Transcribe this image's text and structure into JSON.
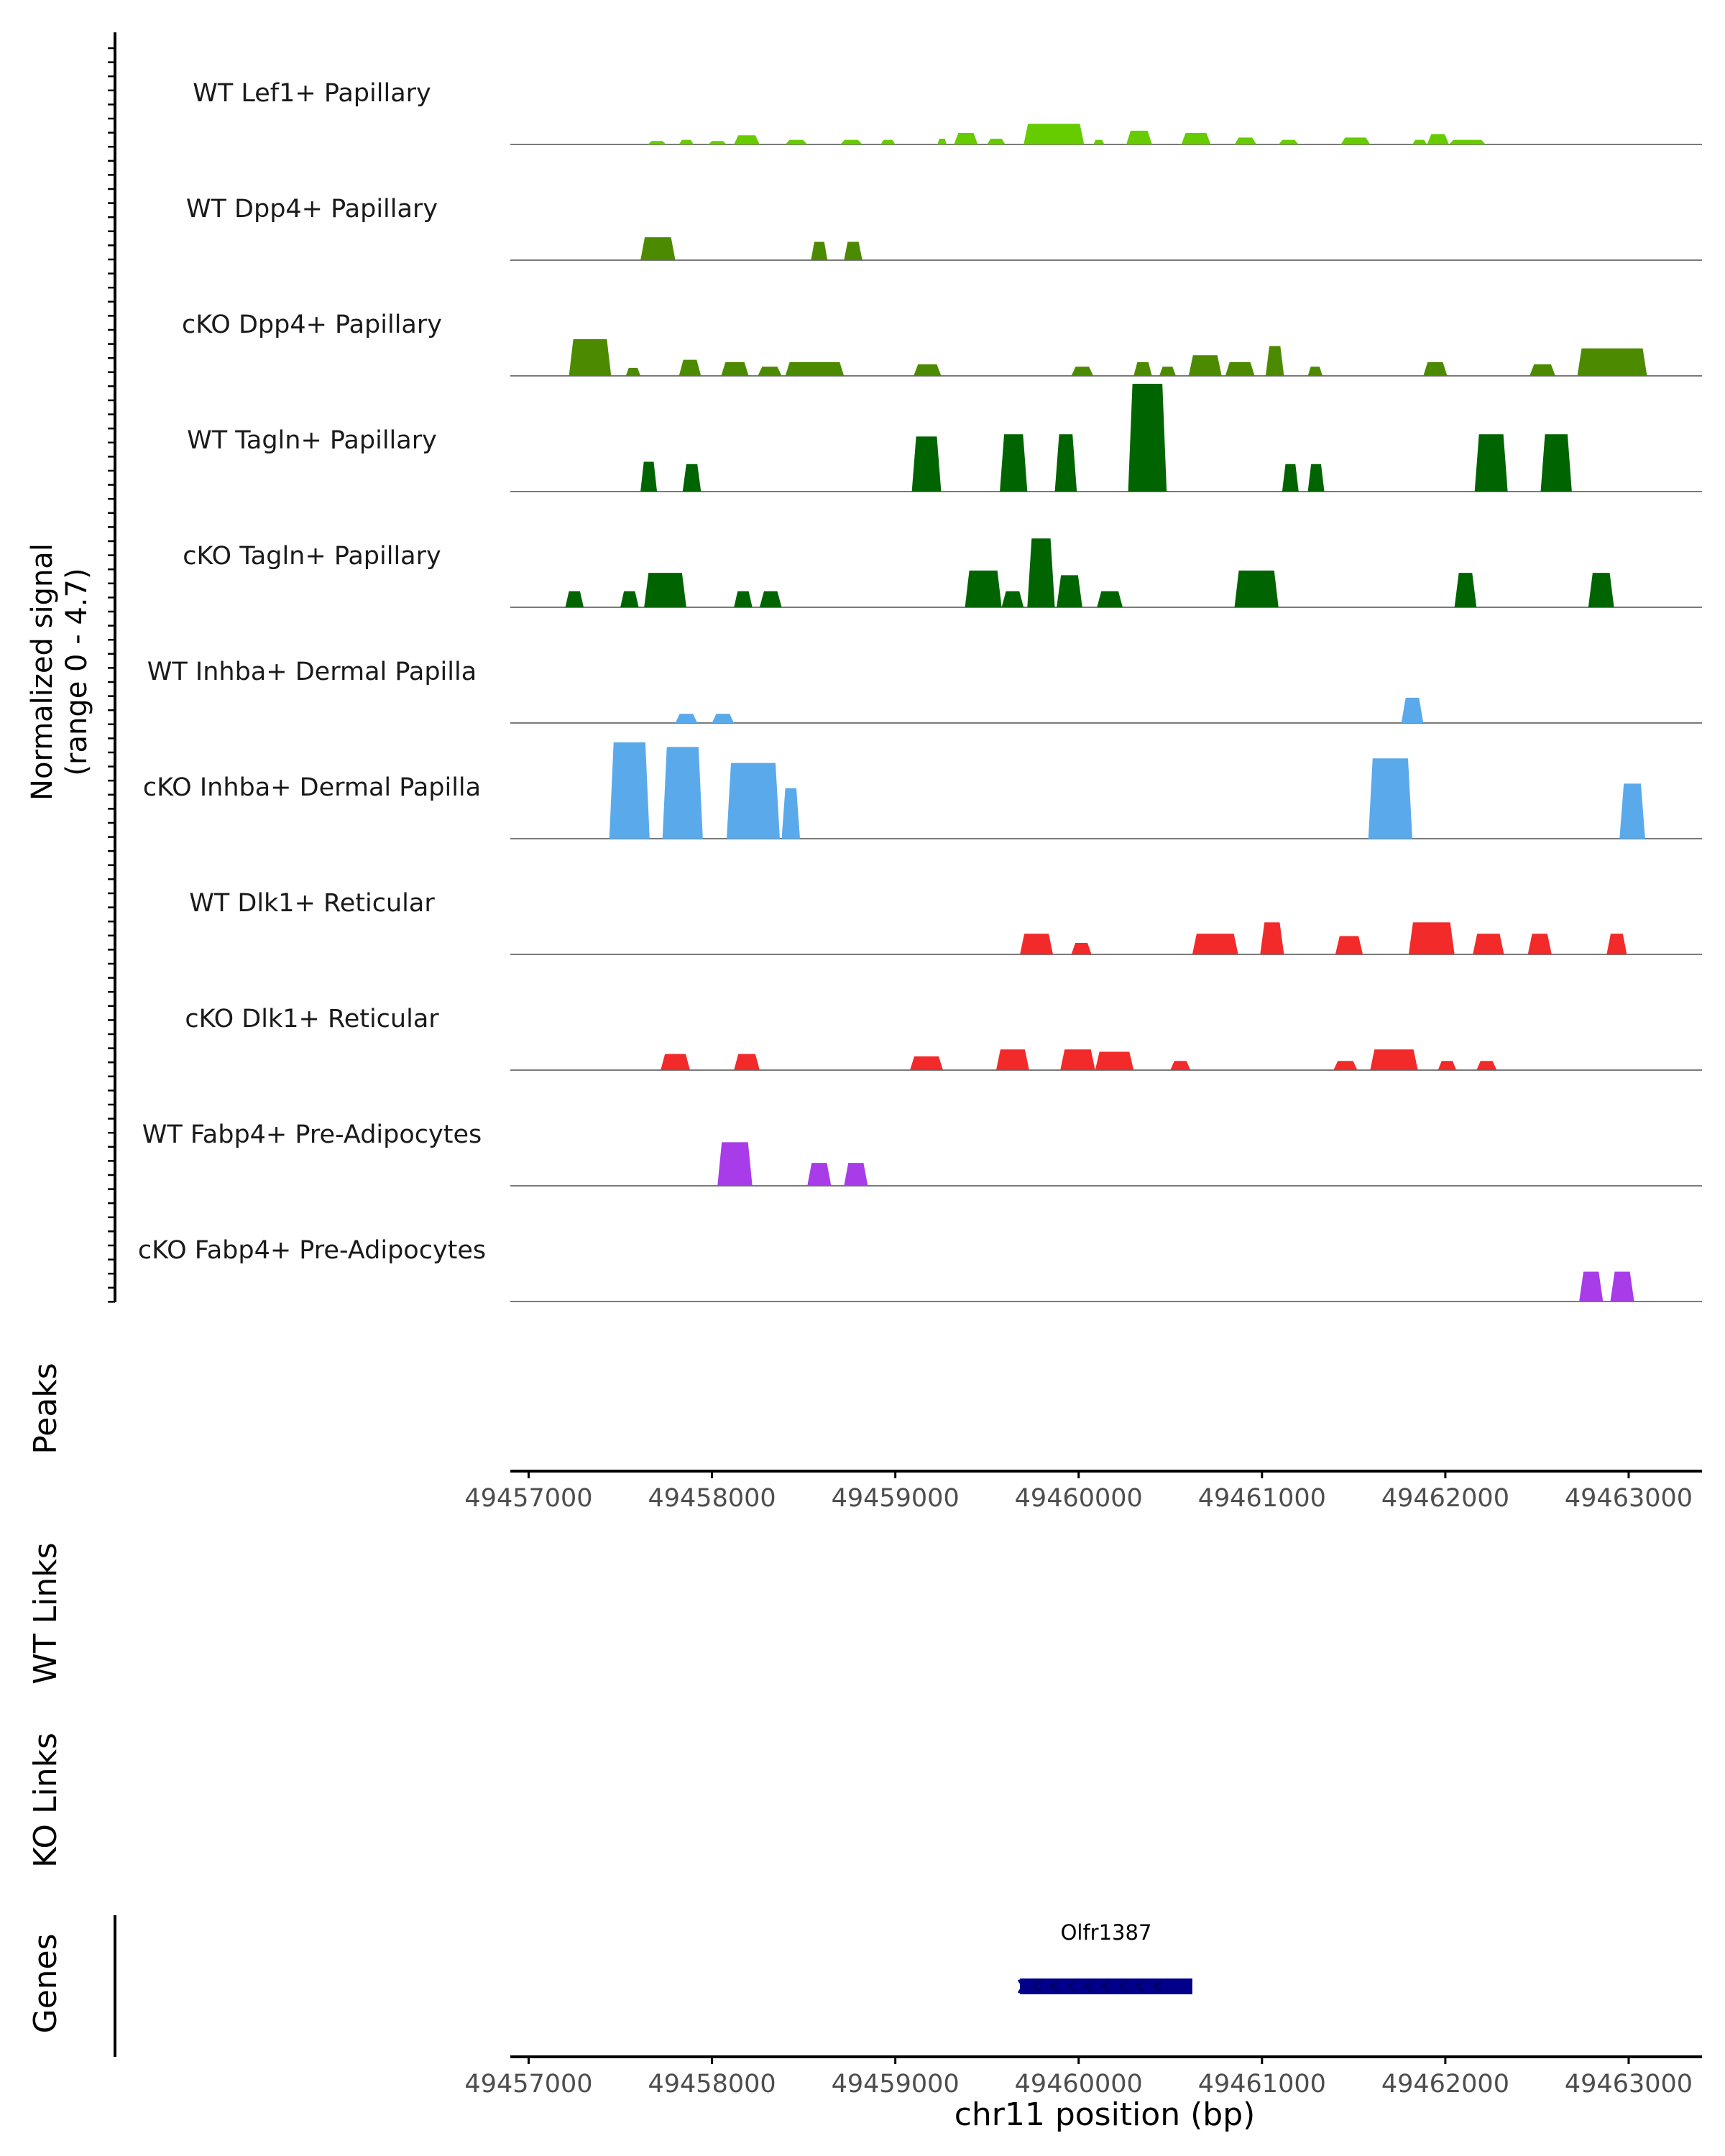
{
  "chart_data": {
    "type": "area",
    "title": "",
    "signal_axis_label": [
      "Normalized signal",
      "(range 0 - 4.7)"
    ],
    "signal_range": [
      0,
      4.7
    ],
    "xlabel": "chr11 position (bp)",
    "xlim": [
      49456900,
      49463400
    ],
    "x_ticks": [
      49457000,
      49458000,
      49459000,
      49460000,
      49461000,
      49462000,
      49463000
    ],
    "x_tick_labels": [
      "49457000",
      "49458000",
      "49459000",
      "49460000",
      "49461000",
      "49462000",
      "49463000"
    ],
    "series": [
      {
        "name": "WT Lef1+ Papillary",
        "color": "#66CC00",
        "peaks": [
          [
            49457650,
            49457750,
            0.15
          ],
          [
            49457820,
            49457900,
            0.2
          ],
          [
            49457980,
            49458080,
            0.15
          ],
          [
            49458120,
            49458260,
            0.4
          ],
          [
            49458400,
            49458520,
            0.2
          ],
          [
            49458700,
            49458820,
            0.2
          ],
          [
            49458920,
            49459000,
            0.2
          ],
          [
            49459230,
            49459280,
            0.25
          ],
          [
            49459320,
            49459450,
            0.5
          ],
          [
            49459500,
            49459600,
            0.25
          ],
          [
            49459700,
            49460030,
            0.9
          ],
          [
            49460080,
            49460140,
            0.2
          ],
          [
            49460260,
            49460400,
            0.6
          ],
          [
            49460560,
            49460720,
            0.5
          ],
          [
            49460850,
            49460970,
            0.3
          ],
          [
            49461090,
            49461200,
            0.2
          ],
          [
            49461430,
            49461590,
            0.3
          ],
          [
            49461820,
            49461900,
            0.2
          ],
          [
            49461900,
            49462020,
            0.45
          ],
          [
            49462020,
            49462220,
            0.2
          ]
        ]
      },
      {
        "name": "WT Dpp4+ Papillary",
        "color": "#4C8A00",
        "peaks": [
          [
            49457610,
            49457800,
            1.0
          ],
          [
            49458540,
            49458630,
            0.8
          ],
          [
            49458720,
            49458820,
            0.8
          ]
        ]
      },
      {
        "name": "cKO Dpp4+ Papillary",
        "color": "#4C8A00",
        "peaks": [
          [
            49457220,
            49457450,
            1.6
          ],
          [
            49457530,
            49457610,
            0.35
          ],
          [
            49457820,
            49457940,
            0.7
          ],
          [
            49458050,
            49458200,
            0.6
          ],
          [
            49458250,
            49458380,
            0.4
          ],
          [
            49458400,
            49458720,
            0.6
          ],
          [
            49459100,
            49459250,
            0.5
          ],
          [
            49459960,
            49460080,
            0.4
          ],
          [
            49460300,
            49460400,
            0.6
          ],
          [
            49460440,
            49460530,
            0.4
          ],
          [
            49460600,
            49460780,
            0.9
          ],
          [
            49460800,
            49460960,
            0.6
          ],
          [
            49461020,
            49461120,
            1.3
          ],
          [
            49461250,
            49461330,
            0.4
          ],
          [
            49461880,
            49462010,
            0.6
          ],
          [
            49462460,
            49462600,
            0.5
          ],
          [
            49462720,
            49463100,
            1.2
          ]
        ]
      },
      {
        "name": "WT Tagln+ Papillary",
        "color": "#006400",
        "peaks": [
          [
            49457610,
            49457700,
            1.3
          ],
          [
            49457840,
            49457940,
            1.2
          ],
          [
            49459090,
            49459250,
            2.4
          ],
          [
            49459570,
            49459720,
            2.5
          ],
          [
            49459870,
            49459990,
            2.5
          ],
          [
            49460270,
            49460480,
            4.7
          ],
          [
            49461110,
            49461200,
            1.2
          ],
          [
            49461250,
            49461340,
            1.2
          ],
          [
            49462160,
            49462340,
            2.5
          ],
          [
            49462520,
            49462690,
            2.5
          ]
        ]
      },
      {
        "name": "cKO Tagln+ Papillary",
        "color": "#006400",
        "peaks": [
          [
            49457200,
            49457300,
            0.7
          ],
          [
            49457500,
            49457600,
            0.7
          ],
          [
            49457630,
            49457860,
            1.5
          ],
          [
            49458120,
            49458220,
            0.7
          ],
          [
            49458260,
            49458380,
            0.7
          ],
          [
            49459380,
            49459580,
            1.6
          ],
          [
            49459580,
            49459700,
            0.7
          ],
          [
            49459720,
            49459870,
            3.0
          ],
          [
            49459880,
            49460020,
            1.4
          ],
          [
            49460100,
            49460240,
            0.7
          ],
          [
            49460850,
            49461090,
            1.6
          ],
          [
            49462050,
            49462170,
            1.5
          ],
          [
            49462780,
            49462920,
            1.5
          ]
        ]
      },
      {
        "name": "WT Inhba+ Dermal Papilla",
        "color": "#5AAAEB",
        "peaks": [
          [
            49457800,
            49457920,
            0.4
          ],
          [
            49458000,
            49458120,
            0.4
          ],
          [
            49461760,
            49461880,
            1.1
          ]
        ]
      },
      {
        "name": "cKO Inhba+ Dermal Papilla",
        "color": "#5AAAEB",
        "peaks": [
          [
            49457440,
            49457660,
            4.2
          ],
          [
            49457730,
            49457950,
            4.0
          ],
          [
            49458080,
            49458370,
            3.3
          ],
          [
            49458380,
            49458480,
            2.2
          ],
          [
            49461580,
            49461820,
            3.5
          ],
          [
            49462950,
            49463090,
            2.4
          ]
        ]
      },
      {
        "name": "WT Dlk1+ Reticular",
        "color": "#F22A2A",
        "peaks": [
          [
            49459680,
            49459860,
            0.9
          ],
          [
            49459960,
            49460070,
            0.5
          ],
          [
            49460620,
            49460870,
            0.9
          ],
          [
            49460990,
            49461120,
            1.4
          ],
          [
            49461400,
            49461550,
            0.8
          ],
          [
            49461800,
            49462050,
            1.4
          ],
          [
            49462150,
            49462320,
            0.9
          ],
          [
            49462450,
            49462580,
            0.9
          ],
          [
            49462880,
            49462990,
            0.9
          ]
        ]
      },
      {
        "name": "cKO Dlk1+ Reticular",
        "color": "#F22A2A",
        "peaks": [
          [
            49457720,
            49457880,
            0.7
          ],
          [
            49458120,
            49458260,
            0.7
          ],
          [
            49459080,
            49459260,
            0.6
          ],
          [
            49459550,
            49459730,
            0.9
          ],
          [
            49459900,
            49460090,
            0.9
          ],
          [
            49460090,
            49460300,
            0.8
          ],
          [
            49460500,
            49460610,
            0.4
          ],
          [
            49461390,
            49461520,
            0.4
          ],
          [
            49461590,
            49461850,
            0.9
          ],
          [
            49461960,
            49462060,
            0.4
          ],
          [
            49462170,
            49462280,
            0.4
          ]
        ]
      },
      {
        "name": "WT Fabp4+ Pre-Adipocytes",
        "color": "#A83CE8",
        "peaks": [
          [
            49458030,
            49458220,
            1.9
          ],
          [
            49458520,
            49458650,
            1.0
          ],
          [
            49458720,
            49458850,
            1.0
          ]
        ]
      },
      {
        "name": "cKO Fabp4+ Pre-Adipocytes",
        "color": "#A83CE8",
        "peaks": [
          [
            49462730,
            49462860,
            1.3
          ],
          [
            49462900,
            49463030,
            1.3
          ]
        ]
      }
    ],
    "panel_labels": {
      "peaks": "Peaks",
      "wt_links": "WT Links",
      "ko_links": "KO Links",
      "genes": "Genes"
    },
    "genes": [
      {
        "name": "Olfr1387",
        "start": 49459680,
        "end": 49460620,
        "strand": "-",
        "color": "#00008B"
      }
    ]
  }
}
